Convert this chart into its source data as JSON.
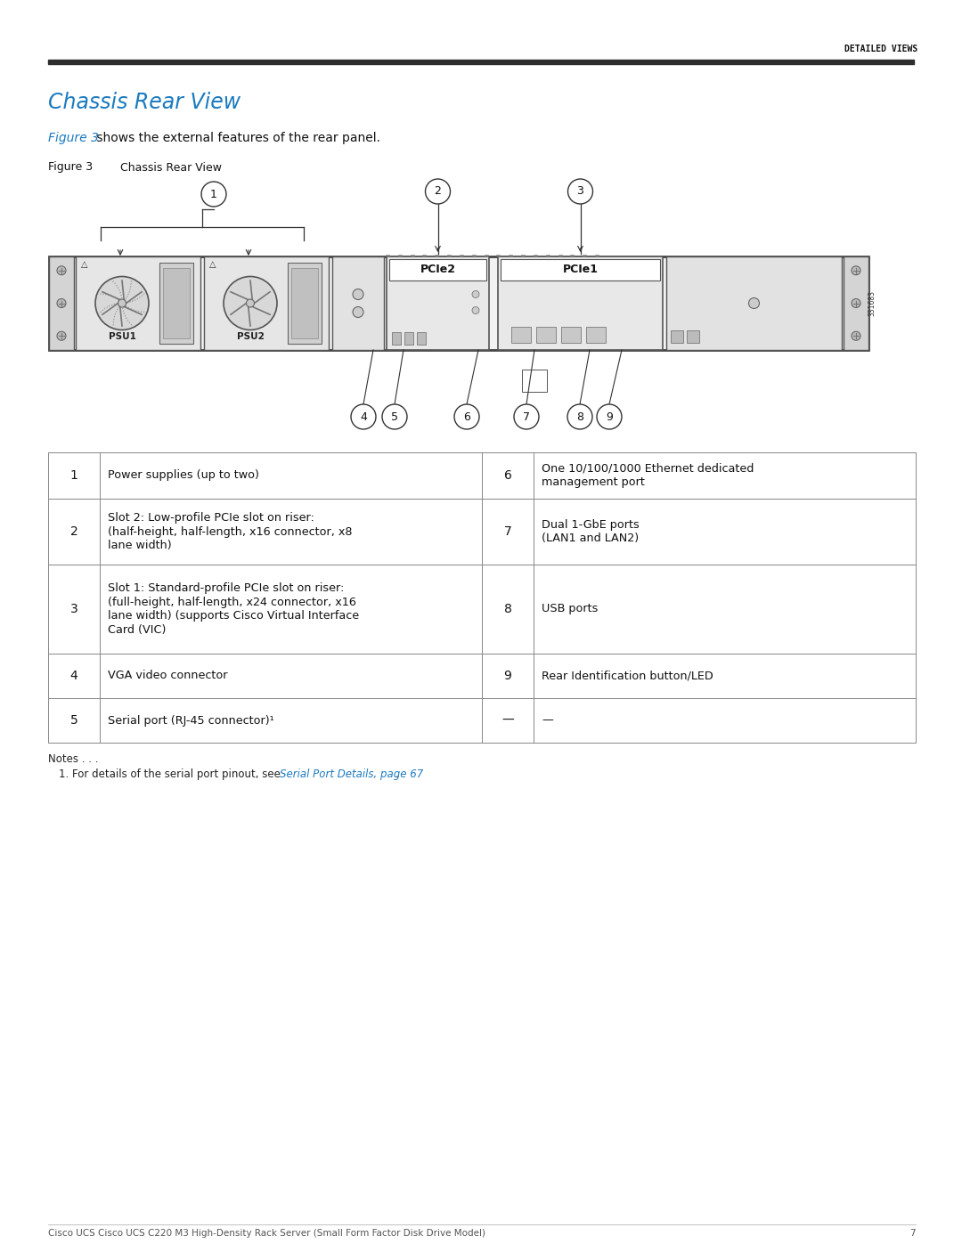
{
  "page_bg": "#ffffff",
  "header_line_color": "#2d2d2d",
  "header_text": "DETAILED VIEWS",
  "title": "Chassis Rear View",
  "title_color": "#1a7abf",
  "subtitle_link": "Figure 3",
  "subtitle_link_color": "#1a7abf",
  "subtitle_rest": " shows the external features of the rear panel.",
  "figure_label": "Figure 3",
  "figure_title": "Chassis Rear View",
  "footer_text": "Cisco UCS Cisco UCS C220 M3 High-Density Rack Server (Small Form Factor Disk Drive Model)",
  "footer_page": "7",
  "table_rows": [
    {
      "num": "1",
      "desc": "Power supplies (up to two)",
      "num2": "6",
      "desc2": "One 10/100/1000 Ethernet dedicated\nmanagement port"
    },
    {
      "num": "2",
      "desc": "Slot 2: Low-profile PCIe slot on riser:\n(half-height, half-length, x16 connector, x8\nlane width)",
      "num2": "7",
      "desc2": "Dual 1-GbE ports\n(LAN1 and LAN2)"
    },
    {
      "num": "3",
      "desc": "Slot 1: Standard-profile PCIe slot on riser:\n(full-height, half-length, x24 connector, x16\nlane width) (supports Cisco Virtual Interface\nCard (VIC)",
      "num2": "8",
      "desc2": "USB ports"
    },
    {
      "num": "4",
      "desc": "VGA video connector",
      "num2": "9",
      "desc2": "Rear Identification button/LED"
    },
    {
      "num": "5",
      "desc": "Serial port (RJ-45 connector)¹",
      "num2": "—",
      "desc2": "—"
    }
  ],
  "notes_link": "Serial Port Details, page 67"
}
